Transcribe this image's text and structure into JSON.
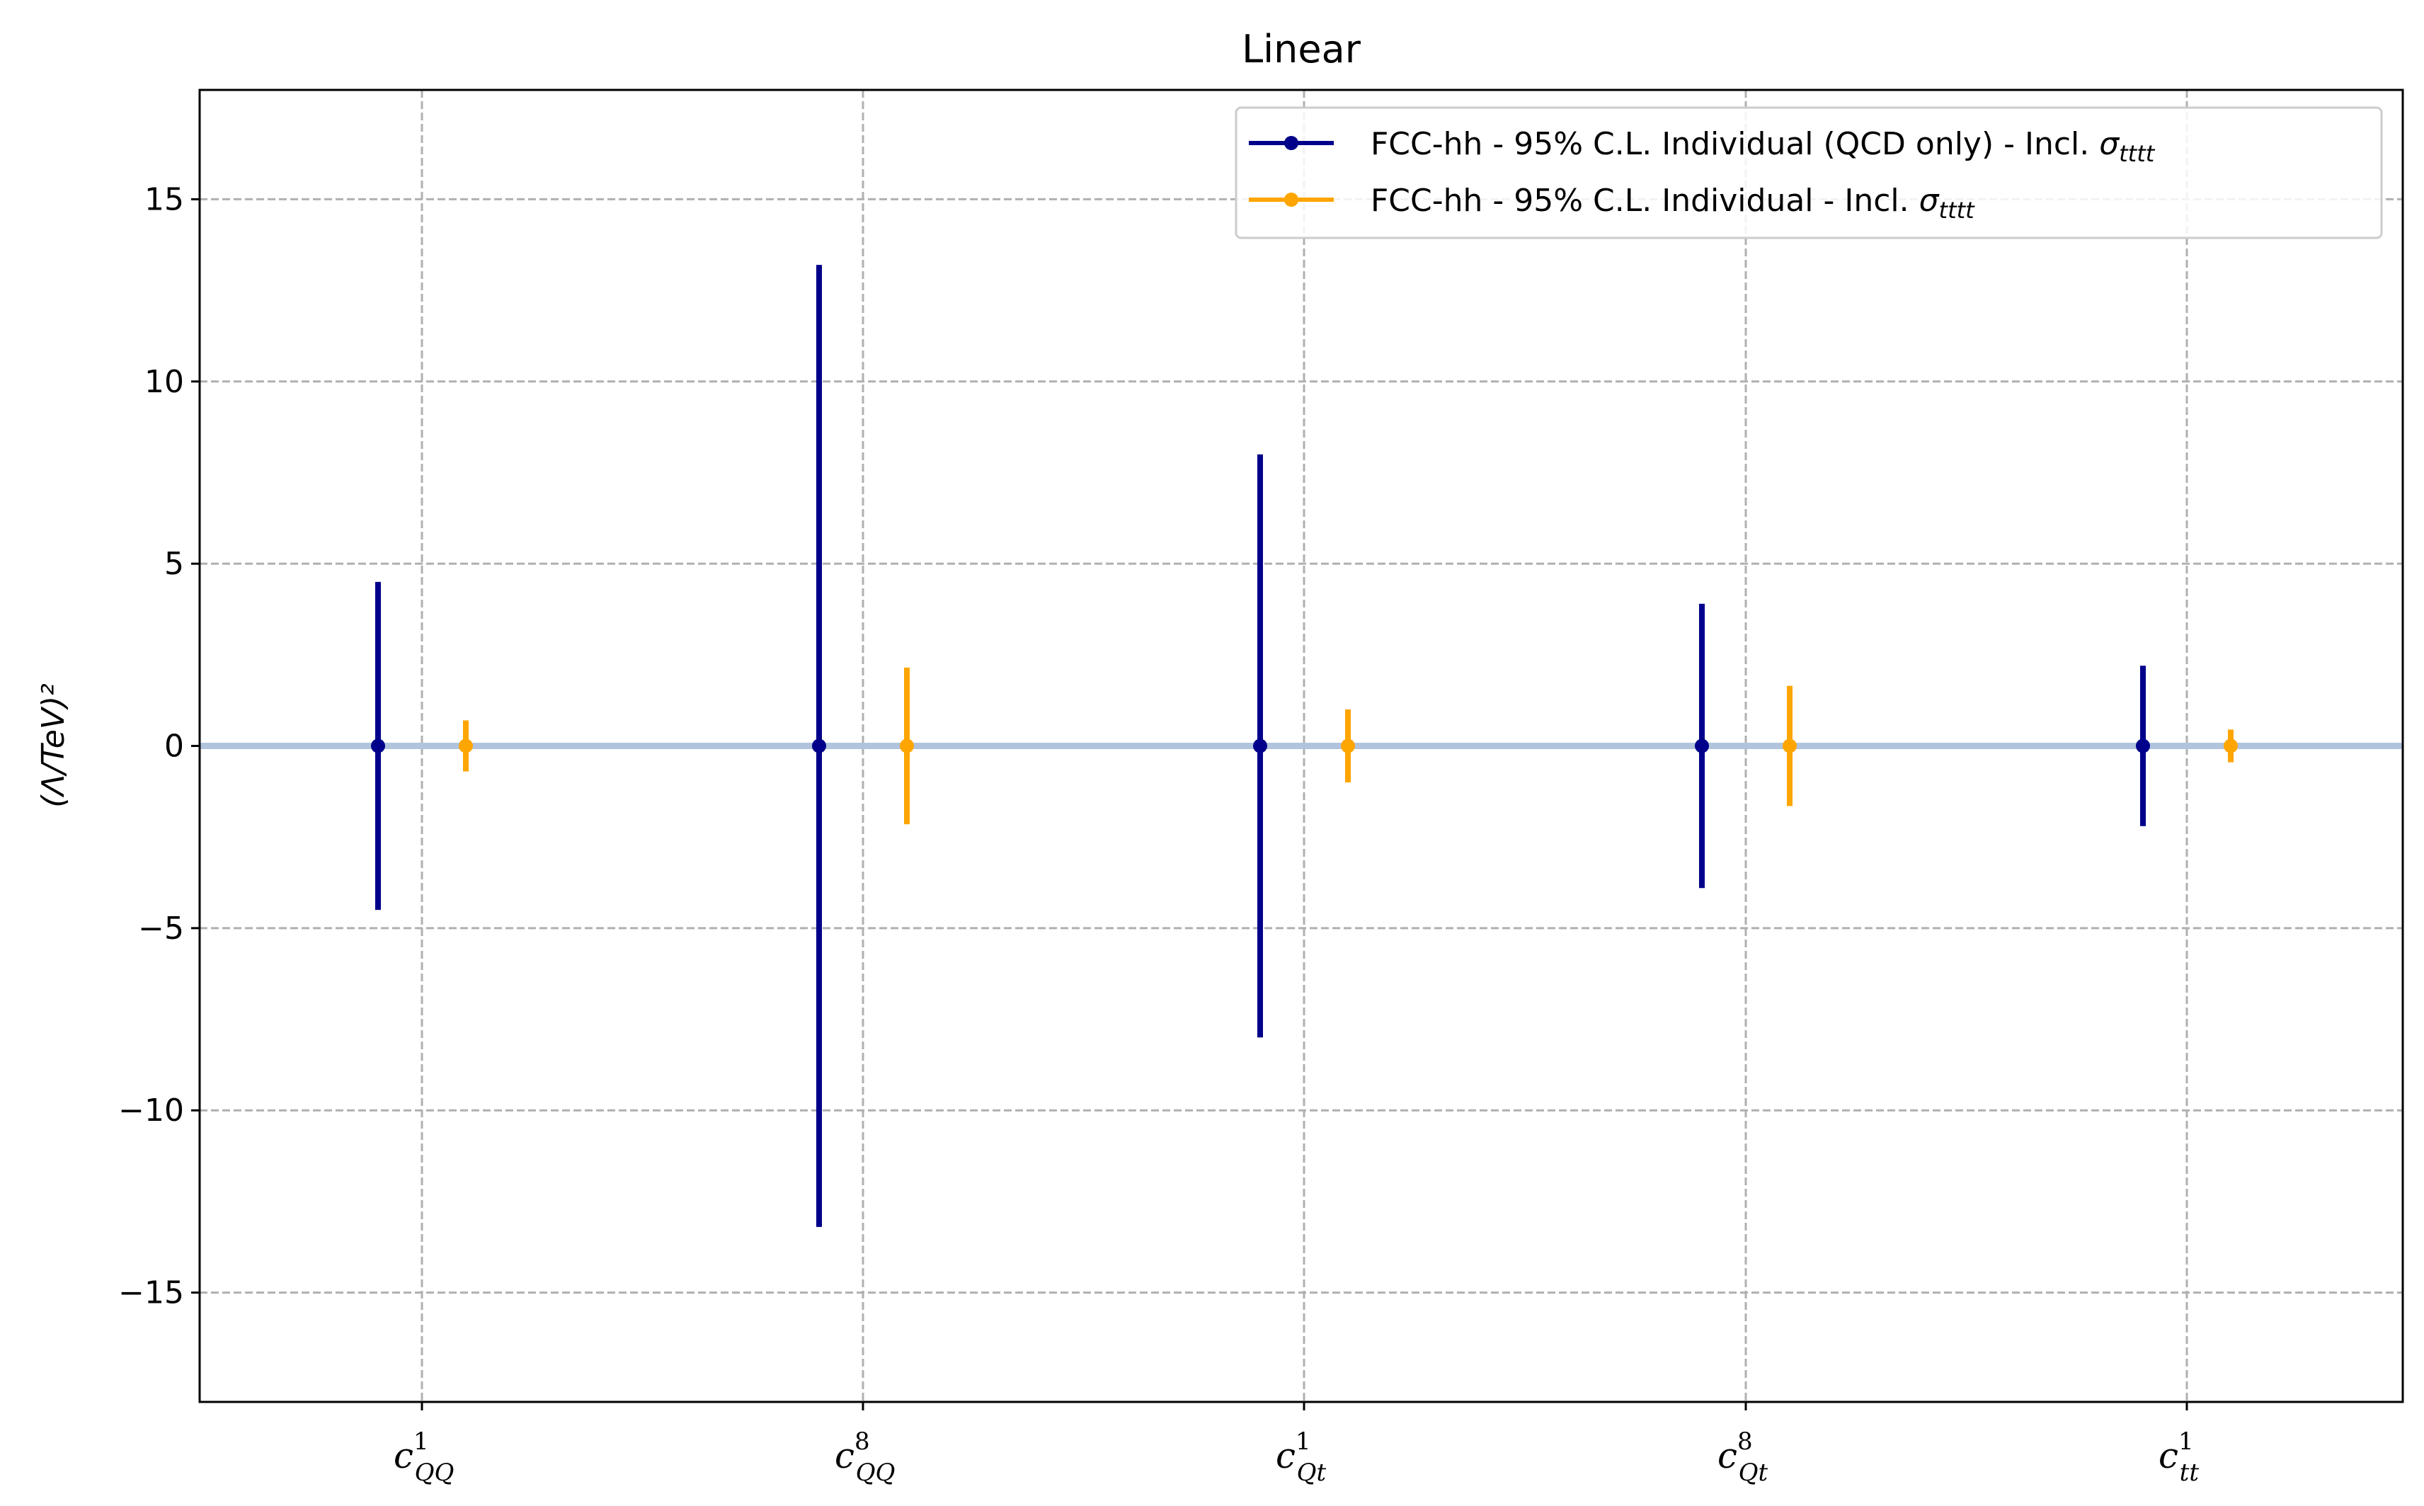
{
  "chart_data": {
    "type": "errorbar",
    "title": "Linear",
    "ylabel": "(Λ/TeV)²",
    "xlabel": "",
    "ylim": [
      -18,
      18
    ],
    "yticks": [
      -15,
      -10,
      -5,
      0,
      5,
      10,
      15
    ],
    "ytick_labels": [
      "−15",
      "−10",
      "−5",
      "0",
      "5",
      "10",
      "15"
    ],
    "grid": true,
    "legend_position": "top-right",
    "categories": [
      {
        "base": "c",
        "sup": "1",
        "sub": "QQ"
      },
      {
        "base": "c",
        "sup": "8",
        "sub": "QQ"
      },
      {
        "base": "c",
        "sup": "1",
        "sub": "Qt"
      },
      {
        "base": "c",
        "sup": "8",
        "sub": "Qt"
      },
      {
        "base": "c",
        "sup": "1",
        "sub": "tt"
      }
    ],
    "series": [
      {
        "name": "FCC-hh - 95% C.L. Individual (QCD only) - Incl. ",
        "name_sigma": "σ",
        "name_sub": "tttt",
        "color": "#00008b",
        "center": [
          0,
          0,
          0,
          0,
          0
        ],
        "lower": [
          -4.5,
          -13.2,
          -8.0,
          -3.9,
          -2.2
        ],
        "upper": [
          4.5,
          13.2,
          8.0,
          3.9,
          2.2
        ]
      },
      {
        "name": "FCC-hh - 95% C.L. Individual - Incl. ",
        "name_sigma": "σ",
        "name_sub": "tttt",
        "color": "#ffa500",
        "center": [
          0,
          0,
          0,
          0,
          0
        ],
        "lower": [
          -0.7,
          -2.15,
          -1.0,
          -1.65,
          -0.45
        ],
        "upper": [
          0.7,
          2.15,
          1.0,
          1.65,
          0.45
        ]
      }
    ],
    "reference_line": {
      "y": 0,
      "color": "#b0c4de"
    }
  }
}
